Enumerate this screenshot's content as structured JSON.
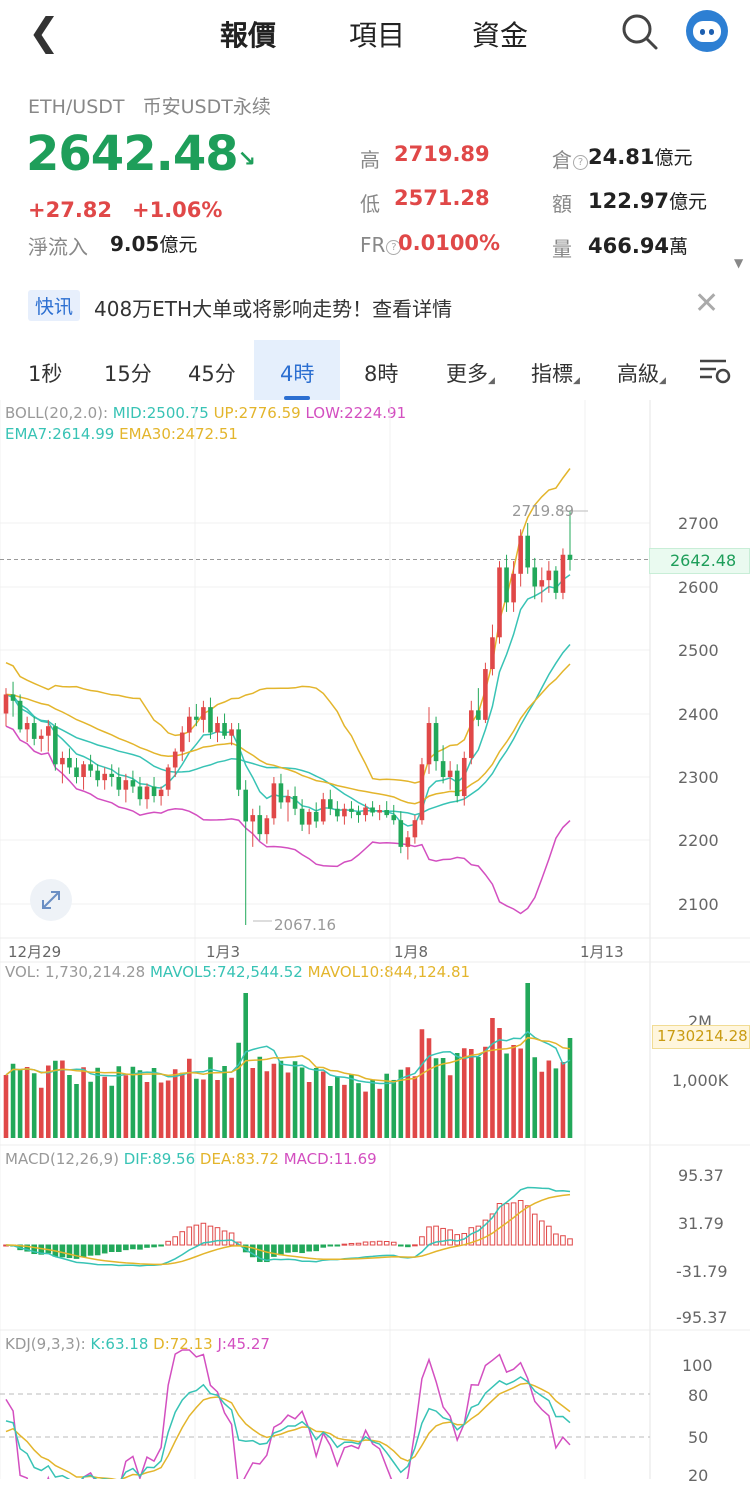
{
  "nav": {
    "back_icon": "chevron-left-icon",
    "tabs": [
      "報價",
      "項目",
      "資金"
    ],
    "active_tab": "報價",
    "search_icon": "search-icon",
    "avatar_icon": "robot-avatar-icon"
  },
  "ticker": {
    "pair": "ETH/USDT",
    "market": "币安USDT永续",
    "price": "2642.48",
    "change_abs": "+27.82",
    "change_pct": "+1.06%",
    "netflow_label": "淨流入",
    "netflow_value": "9.05",
    "netflow_unit": "億元",
    "high_label": "高",
    "high": "2719.89",
    "low_label": "低",
    "low": "2571.28",
    "fr_label": "FR",
    "fr": "0.0100%",
    "oi_label": "倉",
    "oi": "24.81",
    "oi_unit": "億元",
    "amount_label": "額",
    "amount": "122.97",
    "amount_unit": "億元",
    "volume_label": "量",
    "volume": "466.94",
    "volume_unit": "萬"
  },
  "news": {
    "tag": "快讯",
    "text": "408万ETH大单或将影响走势！查看详情"
  },
  "timeframes": {
    "items": [
      "1秒",
      "15分",
      "45分",
      "4時",
      "8時",
      "更多",
      "指標",
      "高級"
    ],
    "active": "4時"
  },
  "indicators": {
    "boll_name": "BOLL(20,2.0):",
    "boll_mid": "MID:2500.75",
    "boll_up": "UP:2776.59",
    "boll_low": "LOW:2224.91",
    "ema7": "EMA7:2614.99",
    "ema30": "EMA30:2472.51",
    "vol_name": "VOL: 1,730,214.28",
    "mavol5": "MAVOL5:742,544.52",
    "mavol10": "MAVOL10:844,124.81",
    "macd_name": "MACD(12,26,9)",
    "dif": "DIF:89.56",
    "dea": "DEA:83.72",
    "macd": "MACD:11.69",
    "kdj_name": "KDJ(9,3,3):",
    "k": "K:63.18",
    "d": "D:72.13",
    "j": "J:45.27"
  },
  "chart_data": {
    "type": "candlestick",
    "timeframe": "4時",
    "x_labels": [
      "12月29",
      "1月3",
      "1月8",
      "1月13"
    ],
    "price_axis": {
      "ticks": [
        2700,
        2600,
        2500,
        2400,
        2300,
        2200,
        2100
      ],
      "range": [
        2060,
        2800
      ]
    },
    "current_price": "2642.48",
    "high_marker": "2719.89",
    "low_marker": "2067.16",
    "candles": [
      [
        2400,
        2440,
        2380,
        2430
      ],
      [
        2430,
        2450,
        2395,
        2420
      ],
      [
        2420,
        2430,
        2370,
        2375
      ],
      [
        2375,
        2395,
        2355,
        2385
      ],
      [
        2385,
        2395,
        2350,
        2360
      ],
      [
        2360,
        2375,
        2340,
        2365
      ],
      [
        2365,
        2390,
        2340,
        2380
      ],
      [
        2380,
        2385,
        2310,
        2320
      ],
      [
        2320,
        2340,
        2290,
        2330
      ],
      [
        2330,
        2345,
        2305,
        2315
      ],
      [
        2315,
        2330,
        2290,
        2300
      ],
      [
        2300,
        2325,
        2280,
        2320
      ],
      [
        2320,
        2335,
        2300,
        2310
      ],
      [
        2310,
        2320,
        2285,
        2295
      ],
      [
        2295,
        2315,
        2280,
        2305
      ],
      [
        2305,
        2320,
        2285,
        2300
      ],
      [
        2300,
        2315,
        2270,
        2280
      ],
      [
        2280,
        2305,
        2260,
        2295
      ],
      [
        2295,
        2310,
        2275,
        2285
      ],
      [
        2285,
        2300,
        2255,
        2265
      ],
      [
        2265,
        2290,
        2250,
        2285
      ],
      [
        2285,
        2300,
        2260,
        2270
      ],
      [
        2270,
        2285,
        2255,
        2280
      ],
      [
        2280,
        2320,
        2270,
        2315
      ],
      [
        2315,
        2345,
        2300,
        2340
      ],
      [
        2340,
        2380,
        2325,
        2370
      ],
      [
        2370,
        2410,
        2355,
        2395
      ],
      [
        2395,
        2415,
        2380,
        2390
      ],
      [
        2390,
        2420,
        2370,
        2410
      ],
      [
        2410,
        2425,
        2360,
        2370
      ],
      [
        2370,
        2395,
        2355,
        2385
      ],
      [
        2385,
        2400,
        2360,
        2365
      ],
      [
        2365,
        2385,
        2350,
        2375
      ],
      [
        2375,
        2385,
        2270,
        2280
      ],
      [
        2280,
        2295,
        2067,
        2230
      ],
      [
        2230,
        2250,
        2190,
        2240
      ],
      [
        2240,
        2255,
        2200,
        2210
      ],
      [
        2210,
        2240,
        2195,
        2235
      ],
      [
        2235,
        2300,
        2225,
        2290
      ],
      [
        2290,
        2305,
        2250,
        2260
      ],
      [
        2260,
        2280,
        2230,
        2270
      ],
      [
        2270,
        2285,
        2240,
        2250
      ],
      [
        2250,
        2265,
        2215,
        2225
      ],
      [
        2225,
        2250,
        2210,
        2245
      ],
      [
        2245,
        2260,
        2220,
        2230
      ],
      [
        2230,
        2275,
        2225,
        2265
      ],
      [
        2265,
        2280,
        2240,
        2250
      ],
      [
        2250,
        2262,
        2230,
        2238
      ],
      [
        2238,
        2258,
        2225,
        2250
      ],
      [
        2250,
        2262,
        2235,
        2245
      ],
      [
        2245,
        2255,
        2228,
        2240
      ],
      [
        2240,
        2258,
        2230,
        2252
      ],
      [
        2252,
        2262,
        2238,
        2244
      ],
      [
        2244,
        2256,
        2232,
        2248
      ],
      [
        2248,
        2262,
        2236,
        2240
      ],
      [
        2240,
        2256,
        2225,
        2232
      ],
      [
        2232,
        2246,
        2180,
        2190
      ],
      [
        2190,
        2215,
        2170,
        2205
      ],
      [
        2205,
        2240,
        2195,
        2232
      ],
      [
        2232,
        2330,
        2225,
        2320
      ],
      [
        2320,
        2410,
        2305,
        2385
      ],
      [
        2385,
        2395,
        2310,
        2325
      ],
      [
        2325,
        2350,
        2290,
        2300
      ],
      [
        2300,
        2325,
        2280,
        2310
      ],
      [
        2310,
        2320,
        2260,
        2270
      ],
      [
        2270,
        2340,
        2255,
        2330
      ],
      [
        2330,
        2420,
        2320,
        2405
      ],
      [
        2405,
        2440,
        2380,
        2390
      ],
      [
        2390,
        2480,
        2385,
        2470
      ],
      [
        2470,
        2540,
        2460,
        2520
      ],
      [
        2520,
        2640,
        2510,
        2630
      ],
      [
        2630,
        2650,
        2560,
        2575
      ],
      [
        2575,
        2640,
        2560,
        2620
      ],
      [
        2620,
        2690,
        2600,
        2680
      ],
      [
        2680,
        2700,
        2620,
        2630
      ],
      [
        2630,
        2645,
        2580,
        2600
      ],
      [
        2600,
        2630,
        2575,
        2610
      ],
      [
        2610,
        2640,
        2590,
        2625
      ],
      [
        2625,
        2632,
        2580,
        2590
      ],
      [
        2590,
        2660,
        2580,
        2650
      ],
      [
        2650,
        2720,
        2625,
        2642
      ]
    ],
    "volume_axis": {
      "ticks": [
        "2M",
        "1,000K"
      ]
    },
    "volume_current": "1730214.28",
    "macd_axis": {
      "ticks": [
        "95.37",
        "31.79",
        "-31.79",
        "-95.37"
      ]
    },
    "kdj_axis": {
      "ticks": [
        "100",
        "80",
        "50",
        "20"
      ]
    },
    "colors": {
      "up": "#e04848",
      "down": "#22a85a",
      "mid": "#38c3b5",
      "up_band": "#e3b52c",
      "low_band": "#d34fc0",
      "ema7": "#38c3b5",
      "ema30": "#e3b52c"
    }
  }
}
